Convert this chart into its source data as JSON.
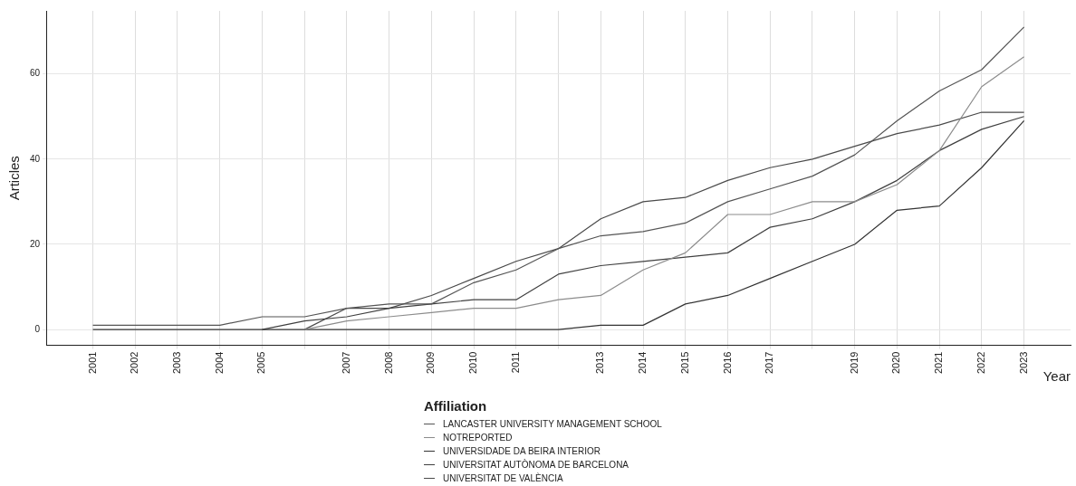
{
  "chart_data": {
    "type": "line",
    "xlabel": "Year",
    "ylabel": "Articles",
    "legend_title": "Affiliation",
    "legend": "bottom",
    "grid": true,
    "marker": "none",
    "line_style": "solid",
    "xlim": [
      1999.9,
      2024.1
    ],
    "xticks": [
      2001,
      2002,
      2003,
      2004,
      2005,
      {
        "value": 2006,
        "label": null
      },
      2007,
      2008,
      2009,
      2010,
      2011,
      {
        "value": 2012,
        "label": null
      },
      2013,
      2014,
      2015,
      2016,
      2017,
      {
        "value": 2018,
        "label": null
      },
      2019,
      2020,
      2021,
      2022,
      2023
    ],
    "ylim": [
      -3.7,
      74.8
    ],
    "yticks": [
      0,
      20,
      40,
      60
    ],
    "series": [
      {
        "name": "LANCASTER UNIVERSITY MANAGEMENT SCHOOL",
        "color": "#555555",
        "x": [
          2001,
          2002,
          2003,
          2004,
          2005,
          2006,
          2007,
          2008,
          2009,
          2010,
          2011,
          2012,
          2013,
          2014,
          2015,
          2016,
          2017,
          2018,
          2019,
          2020,
          2021,
          2022,
          2023
        ],
        "values": [
          1,
          1,
          1,
          1,
          3,
          3,
          5,
          6,
          6,
          11,
          14,
          19,
          22,
          23,
          25,
          30,
          33,
          36,
          41,
          49,
          56,
          61,
          71
        ]
      },
      {
        "name": "NOTREPORTED",
        "color": "#8c8c8c",
        "x": [
          2006,
          2007,
          2008,
          2009,
          2010,
          2011,
          2012,
          2013,
          2014,
          2015,
          2016,
          2017,
          2018,
          2019,
          2020,
          2021,
          2022,
          2023
        ],
        "values": [
          0,
          2,
          3,
          4,
          5,
          5,
          7,
          8,
          14,
          18,
          27,
          27,
          30,
          30,
          34,
          42,
          57,
          64
        ]
      },
      {
        "name": "UNIVERSIDADE DA BEIRA INTERIOR",
        "color": "#333333",
        "x": [
          2001,
          2002,
          2003,
          2004,
          2005,
          2006,
          2007,
          2008,
          2009,
          2010,
          2011,
          2012,
          2013,
          2014,
          2015,
          2016,
          2017,
          2018,
          2019,
          2020,
          2021,
          2022,
          2023
        ],
        "values": [
          0,
          0,
          0,
          0,
          0,
          0,
          0,
          0,
          0,
          0,
          0,
          0,
          1,
          1,
          6,
          8,
          12,
          16,
          20,
          28,
          29,
          38,
          49
        ]
      },
      {
        "name": "UNIVERSITAT AUTÒNOMA DE BARCELONA",
        "color": "#404040",
        "x": [
          2005,
          2006,
          2007,
          2008,
          2009,
          2010,
          2011,
          2012,
          2013,
          2014,
          2015,
          2016,
          2017,
          2018,
          2019,
          2020,
          2021,
          2022,
          2023
        ],
        "values": [
          0,
          2,
          3,
          5,
          6,
          7,
          7,
          13,
          15,
          16,
          17,
          18,
          24,
          26,
          30,
          35,
          42,
          47,
          50
        ]
      },
      {
        "name": "UNIVERSITAT DE VALÈNCIA",
        "color": "#4a4a4a",
        "x": [
          2006,
          2007,
          2008,
          2009,
          2010,
          2011,
          2012,
          2013,
          2014,
          2015,
          2016,
          2017,
          2018,
          2019,
          2020,
          2021,
          2022,
          2023
        ],
        "values": [
          0,
          5,
          5,
          8,
          12,
          16,
          19,
          26,
          30,
          31,
          35,
          38,
          40,
          43,
          46,
          48,
          51,
          51
        ]
      }
    ]
  }
}
